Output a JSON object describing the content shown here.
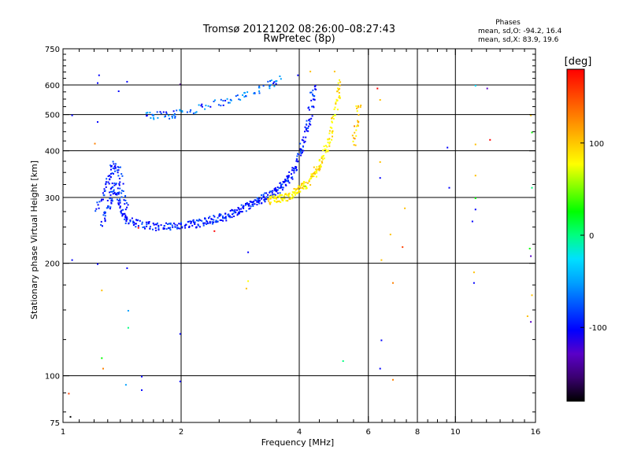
{
  "chart_data": {
    "type": "scatter",
    "title": "Tromsø 20121202 08:26:00–08:27:43",
    "subtitle": "RwPretec (8p)",
    "xlabel": "Frequency [MHz]",
    "ylabel": "Stationary phase Virtual Height [km]",
    "xscale": "log",
    "yscale": "log",
    "xlim": [
      1,
      16
    ],
    "ylim": [
      75,
      750
    ],
    "x_ticks": [
      1,
      2,
      4,
      6,
      8,
      10,
      16
    ],
    "y_ticks": [
      75,
      100,
      200,
      300,
      400,
      500,
      600,
      750
    ],
    "x_gridlines": [
      2,
      4,
      6,
      8,
      10
    ],
    "y_gridlines": [
      100,
      200,
      300,
      400,
      500,
      600
    ],
    "x_minor_ticks": [
      1.1,
      1.2,
      1.3,
      1.4,
      1.5,
      1.6,
      1.7,
      1.8,
      1.9,
      2.5,
      3,
      3.5,
      4.5,
      5,
      5.5,
      6.5,
      7,
      7.5,
      8.5,
      9,
      9.5,
      11,
      12,
      13,
      14,
      15
    ],
    "y_minor_ticks": [
      80,
      90,
      125,
      150,
      175,
      225,
      250,
      275,
      325,
      350,
      375,
      425,
      450,
      475,
      525,
      550,
      575,
      625,
      650,
      675,
      700,
      725
    ],
    "grid": true,
    "phase_stats": {
      "title": "Phases",
      "line_o": "mean, sd,O: -94.2, 16.4",
      "line_x": "mean, sd,X:  83.9, 19.6"
    },
    "colorbar": {
      "label": "[deg]",
      "range": [
        -180,
        180
      ],
      "ticks": [
        -100,
        0,
        100
      ],
      "colors": [
        "#000000",
        "#3a0070",
        "#5a00c8",
        "#0000ff",
        "#0050ff",
        "#00a0ff",
        "#00e0ff",
        "#00ff80",
        "#00ff00",
        "#80ff00",
        "#ffff00",
        "#ffc000",
        "#ff8000",
        "#ff4000",
        "#ff0000"
      ]
    },
    "o_trace": [
      [
        1.25,
        255
      ],
      [
        1.3,
        285
      ],
      [
        1.32,
        300
      ],
      [
        1.35,
        330
      ],
      [
        1.38,
        300
      ],
      [
        1.4,
        275
      ],
      [
        1.45,
        262
      ],
      [
        1.5,
        258
      ],
      [
        1.6,
        254
      ],
      [
        1.7,
        252
      ],
      [
        1.8,
        252
      ],
      [
        1.9,
        252
      ],
      [
        2.0,
        253
      ],
      [
        2.1,
        255
      ],
      [
        2.2,
        257
      ],
      [
        2.3,
        260
      ],
      [
        2.4,
        262
      ],
      [
        2.5,
        266
      ],
      [
        2.6,
        268
      ],
      [
        2.7,
        273
      ],
      [
        2.8,
        278
      ],
      [
        2.9,
        283
      ],
      [
        3.0,
        288
      ],
      [
        3.1,
        293
      ],
      [
        3.2,
        298
      ],
      [
        3.3,
        303
      ],
      [
        3.4,
        308
      ],
      [
        3.5,
        315
      ],
      [
        3.6,
        325
      ],
      [
        3.7,
        335
      ],
      [
        3.8,
        345
      ],
      [
        3.9,
        365
      ],
      [
        4.0,
        390
      ],
      [
        4.1,
        430
      ],
      [
        4.2,
        480
      ],
      [
        4.3,
        550
      ],
      [
        4.35,
        620
      ]
    ],
    "x_trace": [
      [
        3.3,
        295
      ],
      [
        3.4,
        297
      ],
      [
        3.5,
        298
      ],
      [
        3.6,
        300
      ],
      [
        3.7,
        303
      ],
      [
        3.8,
        307
      ],
      [
        3.9,
        312
      ],
      [
        4.0,
        318
      ],
      [
        4.1,
        325
      ],
      [
        4.2,
        333
      ],
      [
        4.3,
        343
      ],
      [
        4.4,
        355
      ],
      [
        4.5,
        370
      ],
      [
        4.6,
        390
      ],
      [
        4.7,
        415
      ],
      [
        4.8,
        450
      ],
      [
        4.9,
        500
      ],
      [
        5.0,
        560
      ],
      [
        5.05,
        620
      ]
    ],
    "o_upper_trace": [
      [
        1.6,
        500
      ],
      [
        1.7,
        500
      ],
      [
        1.8,
        500
      ],
      [
        1.9,
        503
      ],
      [
        2.0,
        508
      ],
      [
        2.2,
        520
      ],
      [
        2.4,
        535
      ],
      [
        2.6,
        548
      ],
      [
        2.8,
        560
      ],
      [
        3.0,
        575
      ],
      [
        3.2,
        590
      ],
      [
        3.4,
        610
      ],
      [
        3.6,
        630
      ]
    ],
    "o_spur": [
      [
        1.2,
        280
      ],
      [
        1.25,
        300
      ],
      [
        1.28,
        320
      ],
      [
        1.3,
        340
      ],
      [
        1.33,
        360
      ],
      [
        1.35,
        370
      ],
      [
        1.38,
        355
      ],
      [
        1.4,
        330
      ],
      [
        1.42,
        300
      ],
      [
        1.45,
        280
      ]
    ],
    "late_x_trace": [
      [
        5.5,
        420
      ],
      [
        5.55,
        460
      ],
      [
        5.6,
        500
      ],
      [
        5.65,
        540
      ]
    ],
    "scattered_points": [
      [
        1.05,
        500,
        -100
      ],
      [
        1.05,
        205,
        -100
      ],
      [
        1.03,
        90,
        150
      ],
      [
        1.04,
        78,
        -170
      ],
      [
        1.23,
        640,
        -100
      ],
      [
        1.22,
        610,
        -100
      ],
      [
        1.22,
        480,
        -100
      ],
      [
        1.2,
        420,
        120
      ],
      [
        1.22,
        200,
        -100
      ],
      [
        1.25,
        170,
        100
      ],
      [
        1.26,
        105,
        120
      ],
      [
        1.25,
        112,
        20
      ],
      [
        1.38,
        580,
        -100
      ],
      [
        1.45,
        615,
        -100
      ],
      [
        1.45,
        195,
        -100
      ],
      [
        1.46,
        150,
        -40
      ],
      [
        1.46,
        135,
        0
      ],
      [
        1.44,
        95,
        -40
      ],
      [
        1.58,
        100,
        -100
      ],
      [
        1.58,
        92,
        -100
      ],
      [
        1.55,
        250,
        180
      ],
      [
        1.98,
        605,
        -160
      ],
      [
        1.98,
        130,
        -100
      ],
      [
        1.98,
        97,
        -100
      ],
      [
        2.42,
        245,
        180
      ],
      [
        2.95,
        215,
        -100
      ],
      [
        2.95,
        180,
        80
      ],
      [
        2.92,
        172,
        110
      ],
      [
        3.95,
        640,
        -100
      ],
      [
        4.25,
        655,
        110
      ],
      [
        4.9,
        655,
        110
      ],
      [
        5.15,
        110,
        -10
      ],
      [
        6.3,
        590,
        170
      ],
      [
        6.4,
        550,
        100
      ],
      [
        6.4,
        375,
        110
      ],
      [
        6.4,
        340,
        -100
      ],
      [
        6.45,
        205,
        110
      ],
      [
        6.45,
        125,
        -100
      ],
      [
        6.4,
        105,
        -100
      ],
      [
        6.8,
        240,
        110
      ],
      [
        6.9,
        178,
        120
      ],
      [
        6.9,
        98,
        120
      ],
      [
        7.4,
        282,
        100
      ],
      [
        7.3,
        222,
        150
      ],
      [
        9.5,
        410,
        -100
      ],
      [
        9.6,
        320,
        -100
      ],
      [
        11.2,
        418,
        110
      ],
      [
        11.2,
        345,
        110
      ],
      [
        11.2,
        300,
        20
      ],
      [
        11.2,
        280,
        -100
      ],
      [
        11.0,
        260,
        -100
      ],
      [
        11.1,
        190,
        110
      ],
      [
        11.1,
        178,
        -100
      ],
      [
        11.2,
        600,
        -20
      ],
      [
        12.0,
        590,
        -120
      ],
      [
        12.2,
        430,
        170
      ],
      [
        15.5,
        500,
        110
      ],
      [
        15.6,
        450,
        20
      ],
      [
        15.6,
        320,
        10
      ],
      [
        15.4,
        220,
        20
      ],
      [
        15.5,
        210,
        -120
      ],
      [
        15.6,
        165,
        110
      ],
      [
        15.2,
        145,
        110
      ],
      [
        15.5,
        140,
        -120
      ]
    ]
  }
}
